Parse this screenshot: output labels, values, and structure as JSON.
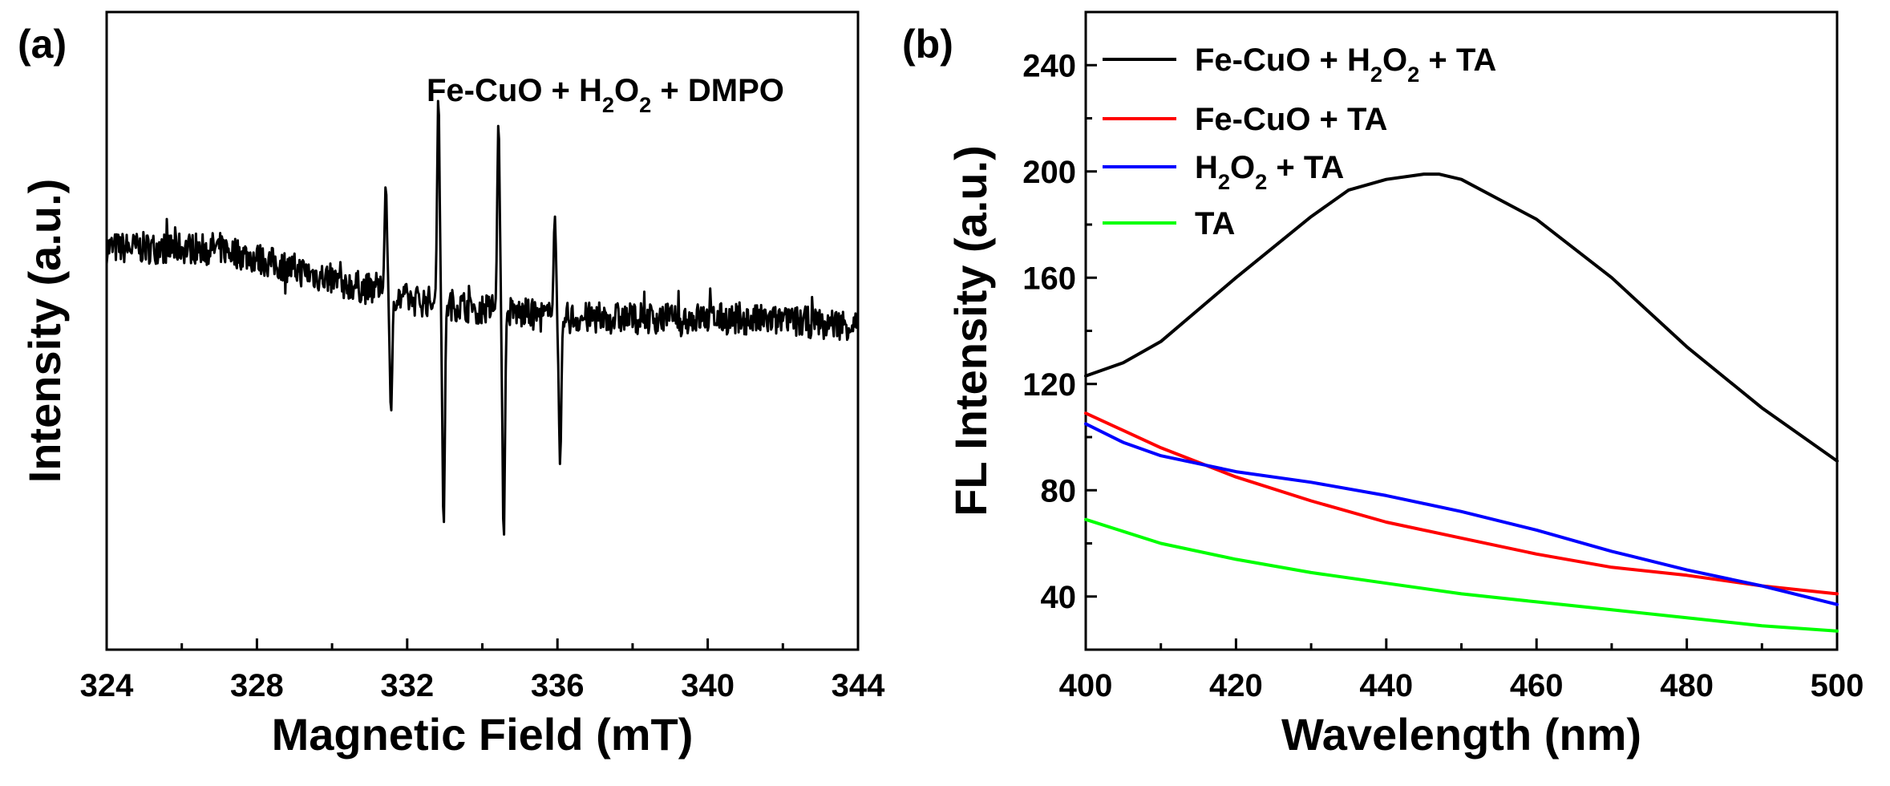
{
  "chart_data": [
    {
      "panel_label": "(a)",
      "type": "line",
      "title": "",
      "xlabel": "Magnetic Field (mT)",
      "ylabel": "Intensity (a.u.)",
      "xlim": [
        324,
        344
      ],
      "xticks": [
        "324",
        "328",
        "332",
        "336",
        "340",
        "344"
      ],
      "y_axis_units": "relative intensity, 0 = bottom of axis, 1 = top of axis",
      "ylim": [
        0,
        1
      ],
      "yticks": [],
      "annotation": {
        "prefix": "Fe-CuO + H",
        "sub1": "2",
        "mid": "O",
        "sub2": "2",
        "suffix": " + DMPO"
      },
      "series": [
        {
          "name": "Fe-CuO + H2O2 + DMPO",
          "color": "#000000",
          "baseline": [
            [
              324,
              0.63
            ],
            [
              327,
              0.63
            ],
            [
              330,
              0.58
            ],
            [
              332,
              0.55
            ],
            [
              336,
              0.52
            ],
            [
              340,
              0.52
            ],
            [
              344,
              0.51
            ]
          ],
          "noise_amplitude": 0.025,
          "peaks": [
            {
              "x": 331.5,
              "up": 0.73,
              "down": 0.37
            },
            {
              "x": 332.9,
              "up": 0.87,
              "down": 0.19
            },
            {
              "x": 334.5,
              "up": 0.83,
              "down": 0.17
            },
            {
              "x": 336.0,
              "up": 0.68,
              "down": 0.29
            }
          ]
        }
      ]
    },
    {
      "panel_label": "(b)",
      "type": "line",
      "title": "",
      "xlabel": "Wavelength (nm)",
      "ylabel": "FL Intensity (a.u.)",
      "xlim": [
        400,
        500
      ],
      "ylim": [
        20,
        260
      ],
      "xticks": [
        "400",
        "420",
        "440",
        "460",
        "480",
        "500"
      ],
      "yticks": [
        "40",
        "80",
        "120",
        "160",
        "200",
        "240"
      ],
      "legend": "top-left",
      "series": [
        {
          "name": "Fe-CuO + H2O2 + TA",
          "label": {
            "prefix": "Fe-CuO + H",
            "sub1": "2",
            "mid": "O",
            "sub2": "2",
            "suffix": " + TA"
          },
          "color": "#000000",
          "x": [
            400,
            405,
            410,
            420,
            430,
            435,
            440,
            445,
            447,
            450,
            460,
            470,
            480,
            490,
            500
          ],
          "y": [
            123,
            128,
            136,
            160,
            183,
            193,
            197,
            199,
            199,
            197,
            182,
            160,
            134,
            111,
            91
          ]
        },
        {
          "name": "Fe-CuO + TA",
          "label": {
            "prefix": "Fe-CuO + TA"
          },
          "color": "#ff0000",
          "x": [
            400,
            410,
            420,
            430,
            440,
            450,
            460,
            470,
            480,
            490,
            500
          ],
          "y": [
            109,
            96,
            85,
            76,
            68,
            62,
            56,
            51,
            48,
            44,
            41
          ]
        },
        {
          "name": "H2O2 + TA",
          "label": {
            "prefix": "H",
            "sub1": "2",
            "mid": "O",
            "sub2": "2",
            "suffix": " + TA"
          },
          "color": "#0000ff",
          "x": [
            400,
            405,
            410,
            415,
            420,
            430,
            440,
            450,
            460,
            470,
            480,
            490,
            500
          ],
          "y": [
            105,
            98,
            93,
            90,
            87,
            83,
            78,
            72,
            65,
            57,
            50,
            44,
            37
          ]
        },
        {
          "name": "TA",
          "label": {
            "prefix": "TA"
          },
          "color": "#00ff00",
          "x": [
            400,
            410,
            420,
            430,
            440,
            450,
            460,
            470,
            480,
            490,
            500
          ],
          "y": [
            69,
            60,
            54,
            49,
            45,
            41,
            38,
            35,
            32,
            29,
            27
          ]
        }
      ]
    }
  ]
}
